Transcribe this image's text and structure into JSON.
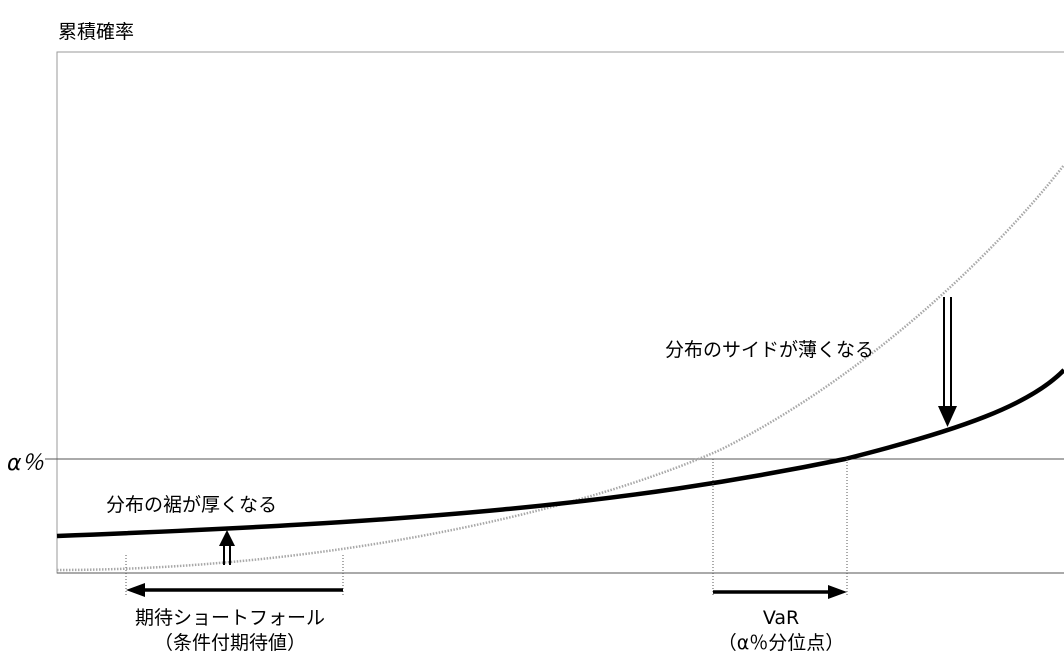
{
  "y_axis_title": "累積確率",
  "alpha_label": "α％",
  "annotations": {
    "thin_side": "分布のサイドが薄くなる",
    "thick_tail": "分布の裾が厚くなる"
  },
  "measures": {
    "expected_shortfall": {
      "line1": "期待ショートフォール",
      "line2": "（条件付期待値）"
    },
    "var": {
      "line1": "VaR",
      "line2": "（α％分位点）"
    }
  },
  "colors": {
    "line": "#000000",
    "reference_curve": "#b0b0b0",
    "background": "#ffffff"
  }
}
